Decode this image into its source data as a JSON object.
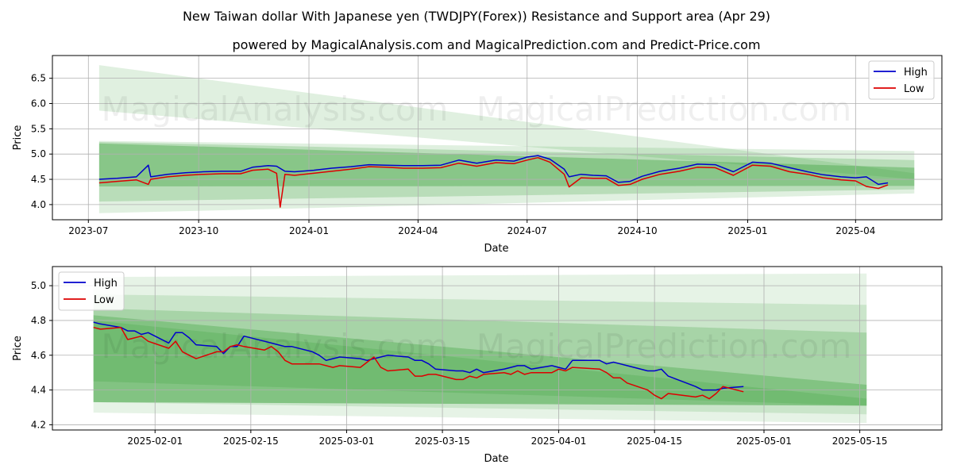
{
  "title": "New Taiwan dollar With Japanese yen (TWDJPY(Forex)) Resistance and Support area (Apr 29)",
  "subtitle": "powered by MagicalAnalysis.com and MagicalPrediction.com and Predict-Price.com",
  "watermarks": [
    "MagicalAnalysis.com",
    "MagicalPrediction.com"
  ],
  "colors": {
    "high": "#0000cc",
    "low": "#dd0000",
    "band": "#2e9a2e",
    "grid": "#b0b0b0"
  },
  "chart_data": [
    {
      "type": "line",
      "xlabel": "Date",
      "ylabel": "Price",
      "xlim": [
        "2023-06-01",
        "2025-06-12"
      ],
      "ylim": [
        3.7,
        6.95
      ],
      "xticks": [
        {
          "date": "2023-07-01",
          "label": "2023-07"
        },
        {
          "date": "2023-10-01",
          "label": "2023-10"
        },
        {
          "date": "2024-01-01",
          "label": "2024-01"
        },
        {
          "date": "2024-04-01",
          "label": "2024-04"
        },
        {
          "date": "2024-07-01",
          "label": "2024-07"
        },
        {
          "date": "2024-10-01",
          "label": "2024-10"
        },
        {
          "date": "2025-01-01",
          "label": "2025-01"
        },
        {
          "date": "2025-04-01",
          "label": "2025-04"
        }
      ],
      "yticks": [
        4.0,
        4.5,
        5.0,
        5.5,
        6.0,
        6.5
      ],
      "grid": true,
      "legend": "top-right",
      "bands": [
        {
          "x0": "2023-07-10",
          "x1": "2025-05-20",
          "top0": 6.76,
          "top1": 4.62,
          "bot0": 5.86,
          "bot1": 4.5,
          "opacity": 0.15
        },
        {
          "x0": "2023-07-10",
          "x1": "2025-05-20",
          "top0": 5.26,
          "top1": 5.06,
          "bot0": 3.83,
          "bot1": 4.22,
          "opacity": 0.15
        },
        {
          "x0": "2023-07-10",
          "x1": "2025-05-20",
          "top0": 5.24,
          "top1": 4.88,
          "bot0": 4.06,
          "bot1": 4.3,
          "opacity": 0.22
        },
        {
          "x0": "2023-07-10",
          "x1": "2025-05-20",
          "top0": 5.21,
          "top1": 4.73,
          "bot0": 4.36,
          "bot1": 4.37,
          "opacity": 0.35
        }
      ],
      "series": [
        {
          "name": "High",
          "x": [
            "2023-07-10",
            "2023-07-25",
            "2023-08-10",
            "2023-08-20",
            "2023-08-22",
            "2023-09-05",
            "2023-09-20",
            "2023-10-05",
            "2023-10-20",
            "2023-11-05",
            "2023-11-15",
            "2023-11-28",
            "2023-12-05",
            "2023-12-12",
            "2023-12-20",
            "2024-01-05",
            "2024-01-20",
            "2024-02-05",
            "2024-02-20",
            "2024-03-05",
            "2024-03-20",
            "2024-04-05",
            "2024-04-20",
            "2024-05-05",
            "2024-05-20",
            "2024-06-05",
            "2024-06-20",
            "2024-07-01",
            "2024-07-10",
            "2024-07-20",
            "2024-08-01",
            "2024-08-05",
            "2024-08-15",
            "2024-08-25",
            "2024-09-05",
            "2024-09-15",
            "2024-09-25",
            "2024-10-05",
            "2024-10-20",
            "2024-11-05",
            "2024-11-20",
            "2024-12-05",
            "2024-12-20",
            "2025-01-05",
            "2025-01-20",
            "2025-02-05",
            "2025-02-20",
            "2025-03-05",
            "2025-03-20",
            "2025-04-01",
            "2025-04-10",
            "2025-04-20",
            "2025-04-28"
          ],
          "values": [
            4.5,
            4.52,
            4.55,
            4.78,
            4.55,
            4.6,
            4.63,
            4.65,
            4.66,
            4.66,
            4.74,
            4.77,
            4.76,
            4.66,
            4.65,
            4.68,
            4.72,
            4.75,
            4.79,
            4.78,
            4.77,
            4.77,
            4.78,
            4.88,
            4.82,
            4.88,
            4.86,
            4.94,
            4.97,
            4.9,
            4.7,
            4.55,
            4.6,
            4.58,
            4.57,
            4.44,
            4.46,
            4.56,
            4.66,
            4.72,
            4.8,
            4.79,
            4.65,
            4.84,
            4.82,
            4.73,
            4.65,
            4.59,
            4.55,
            4.53,
            4.55,
            4.4,
            4.43
          ]
        },
        {
          "name": "Low",
          "x": [
            "2023-07-10",
            "2023-07-25",
            "2023-08-10",
            "2023-08-20",
            "2023-08-22",
            "2023-09-05",
            "2023-09-20",
            "2023-10-05",
            "2023-10-20",
            "2023-11-05",
            "2023-11-15",
            "2023-11-28",
            "2023-12-05",
            "2023-12-08",
            "2023-12-12",
            "2023-12-20",
            "2024-01-05",
            "2024-01-20",
            "2024-02-05",
            "2024-02-20",
            "2024-03-05",
            "2024-03-20",
            "2024-04-05",
            "2024-04-20",
            "2024-05-05",
            "2024-05-20",
            "2024-06-05",
            "2024-06-20",
            "2024-07-01",
            "2024-07-10",
            "2024-07-20",
            "2024-08-01",
            "2024-08-05",
            "2024-08-15",
            "2024-08-25",
            "2024-09-05",
            "2024-09-15",
            "2024-09-25",
            "2024-10-05",
            "2024-10-20",
            "2024-11-05",
            "2024-11-20",
            "2024-12-05",
            "2024-12-20",
            "2025-01-05",
            "2025-01-20",
            "2025-02-05",
            "2025-02-20",
            "2025-03-05",
            "2025-03-20",
            "2025-04-01",
            "2025-04-10",
            "2025-04-20",
            "2025-04-28"
          ],
          "values": [
            4.43,
            4.46,
            4.49,
            4.4,
            4.5,
            4.55,
            4.58,
            4.6,
            4.61,
            4.61,
            4.68,
            4.7,
            4.62,
            3.95,
            4.6,
            4.58,
            4.62,
            4.66,
            4.7,
            4.75,
            4.74,
            4.72,
            4.72,
            4.73,
            4.82,
            4.76,
            4.83,
            4.81,
            4.88,
            4.93,
            4.84,
            4.6,
            4.35,
            4.53,
            4.52,
            4.52,
            4.38,
            4.4,
            4.5,
            4.6,
            4.66,
            4.74,
            4.73,
            4.58,
            4.78,
            4.76,
            4.65,
            4.6,
            4.53,
            4.49,
            4.47,
            4.36,
            4.32,
            4.39
          ]
        }
      ]
    },
    {
      "type": "line",
      "xlabel": "Date",
      "ylabel": "Price",
      "xlim": [
        "2025-01-17",
        "2025-05-27"
      ],
      "ylim": [
        4.17,
        5.11
      ],
      "xticks": [
        {
          "date": "2025-02-01",
          "label": "2025-02-01"
        },
        {
          "date": "2025-02-15",
          "label": "2025-02-15"
        },
        {
          "date": "2025-03-01",
          "label": "2025-03-01"
        },
        {
          "date": "2025-03-15",
          "label": "2025-03-15"
        },
        {
          "date": "2025-04-01",
          "label": "2025-04-01"
        },
        {
          "date": "2025-04-15",
          "label": "2025-04-15"
        },
        {
          "date": "2025-05-01",
          "label": "2025-05-01"
        },
        {
          "date": "2025-05-15",
          "label": "2025-05-15"
        }
      ],
      "yticks": [
        4.2,
        4.4,
        4.6,
        4.8,
        5.0
      ],
      "grid": true,
      "legend": "top-left",
      "bands": [
        {
          "x0": "2025-01-23",
          "x1": "2025-05-16",
          "top0": 5.05,
          "top1": 5.07,
          "bot0": 4.27,
          "bot1": 4.21,
          "opacity": 0.12
        },
        {
          "x0": "2025-01-23",
          "x1": "2025-05-16",
          "top0": 4.95,
          "top1": 4.89,
          "bot0": 4.33,
          "bot1": 4.26,
          "opacity": 0.15
        },
        {
          "x0": "2025-01-23",
          "x1": "2025-05-16",
          "top0": 4.87,
          "top1": 4.73,
          "bot0": 4.33,
          "bot1": 4.31,
          "opacity": 0.22
        },
        {
          "x0": "2025-01-23",
          "x1": "2025-05-16",
          "top0": 4.83,
          "top1": 4.43,
          "bot0": 4.33,
          "bot1": 4.31,
          "opacity": 0.3
        },
        {
          "x0": "2025-01-23",
          "x1": "2025-05-16",
          "top0": 4.8,
          "top1": 4.35,
          "bot0": 4.45,
          "bot1": 4.31,
          "opacity": 0.2
        }
      ],
      "series": [
        {
          "name": "High",
          "x": [
            "2025-01-23",
            "2025-01-24",
            "2025-01-27",
            "2025-01-28",
            "2025-01-29",
            "2025-01-30",
            "2025-01-31",
            "2025-02-03",
            "2025-02-04",
            "2025-02-05",
            "2025-02-06",
            "2025-02-07",
            "2025-02-10",
            "2025-02-11",
            "2025-02-12",
            "2025-02-13",
            "2025-02-14",
            "2025-02-17",
            "2025-02-18",
            "2025-02-19",
            "2025-02-20",
            "2025-02-21",
            "2025-02-24",
            "2025-02-25",
            "2025-02-26",
            "2025-02-27",
            "2025-02-28",
            "2025-03-03",
            "2025-03-04",
            "2025-03-05",
            "2025-03-06",
            "2025-03-07",
            "2025-03-10",
            "2025-03-11",
            "2025-03-12",
            "2025-03-13",
            "2025-03-14",
            "2025-03-17",
            "2025-03-18",
            "2025-03-19",
            "2025-03-20",
            "2025-03-21",
            "2025-03-24",
            "2025-03-25",
            "2025-03-26",
            "2025-03-27",
            "2025-03-28",
            "2025-03-31",
            "2025-04-01",
            "2025-04-02",
            "2025-04-03",
            "2025-04-07",
            "2025-04-08",
            "2025-04-09",
            "2025-04-10",
            "2025-04-11",
            "2025-04-14",
            "2025-04-15",
            "2025-04-16",
            "2025-04-17",
            "2025-04-21",
            "2025-04-22",
            "2025-04-23",
            "2025-04-24",
            "2025-04-25",
            "2025-04-28"
          ],
          "values": [
            4.79,
            4.78,
            4.76,
            4.74,
            4.74,
            4.72,
            4.73,
            4.67,
            4.73,
            4.73,
            4.7,
            4.66,
            4.65,
            4.61,
            4.65,
            4.65,
            4.71,
            4.68,
            4.67,
            4.66,
            4.65,
            4.65,
            4.62,
            4.6,
            4.57,
            4.58,
            4.59,
            4.58,
            4.57,
            4.58,
            4.59,
            4.6,
            4.59,
            4.57,
            4.57,
            4.55,
            4.52,
            4.51,
            4.51,
            4.5,
            4.52,
            4.5,
            4.52,
            4.53,
            4.54,
            4.54,
            4.52,
            4.54,
            4.53,
            4.52,
            4.57,
            4.57,
            4.55,
            4.56,
            4.55,
            4.54,
            4.51,
            4.51,
            4.52,
            4.48,
            4.42,
            4.4,
            4.4,
            4.4,
            4.41,
            4.42
          ]
        },
        {
          "name": "Low",
          "x": [
            "2025-01-23",
            "2025-01-24",
            "2025-01-27",
            "2025-01-28",
            "2025-01-29",
            "2025-01-30",
            "2025-01-31",
            "2025-02-03",
            "2025-02-04",
            "2025-02-05",
            "2025-02-06",
            "2025-02-07",
            "2025-02-10",
            "2025-02-11",
            "2025-02-12",
            "2025-02-13",
            "2025-02-14",
            "2025-02-17",
            "2025-02-18",
            "2025-02-19",
            "2025-02-20",
            "2025-02-21",
            "2025-02-24",
            "2025-02-25",
            "2025-02-26",
            "2025-02-27",
            "2025-02-28",
            "2025-03-03",
            "2025-03-04",
            "2025-03-05",
            "2025-03-06",
            "2025-03-07",
            "2025-03-10",
            "2025-03-11",
            "2025-03-12",
            "2025-03-13",
            "2025-03-14",
            "2025-03-17",
            "2025-03-18",
            "2025-03-19",
            "2025-03-20",
            "2025-03-21",
            "2025-03-24",
            "2025-03-25",
            "2025-03-26",
            "2025-03-27",
            "2025-03-28",
            "2025-03-31",
            "2025-04-01",
            "2025-04-02",
            "2025-04-03",
            "2025-04-07",
            "2025-04-08",
            "2025-04-09",
            "2025-04-10",
            "2025-04-11",
            "2025-04-14",
            "2025-04-15",
            "2025-04-16",
            "2025-04-17",
            "2025-04-21",
            "2025-04-22",
            "2025-04-23",
            "2025-04-24",
            "2025-04-25",
            "2025-04-28"
          ],
          "values": [
            4.76,
            4.75,
            4.76,
            4.69,
            4.7,
            4.71,
            4.68,
            4.64,
            4.68,
            4.62,
            4.6,
            4.58,
            4.62,
            4.62,
            4.65,
            4.66,
            4.65,
            4.63,
            4.65,
            4.62,
            4.57,
            4.55,
            4.55,
            4.55,
            4.54,
            4.53,
            4.54,
            4.53,
            4.56,
            4.59,
            4.53,
            4.51,
            4.52,
            4.48,
            4.48,
            4.49,
            4.49,
            4.46,
            4.46,
            4.48,
            4.47,
            4.49,
            4.5,
            4.49,
            4.51,
            4.49,
            4.5,
            4.5,
            4.52,
            4.51,
            4.53,
            4.52,
            4.5,
            4.47,
            4.47,
            4.44,
            4.4,
            4.37,
            4.35,
            4.38,
            4.36,
            4.37,
            4.35,
            4.38,
            4.42,
            4.39
          ]
        }
      ]
    }
  ]
}
